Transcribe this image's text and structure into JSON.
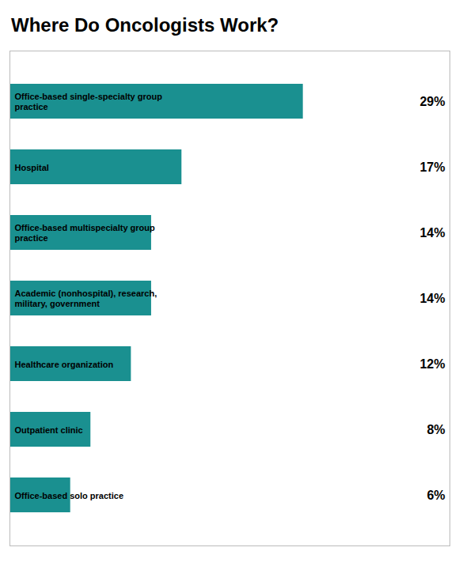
{
  "chart_data": {
    "type": "bar",
    "orientation": "horizontal",
    "title": "Where Do Oncologists Work?",
    "categories": [
      "Office-based single-specialty group\npractice",
      "Hospital",
      "Office-based multispecialty group\npractice",
      "Academic (nonhospital), research,\nmilitary, government",
      "Healthcare organization",
      "Outpatient clinic",
      "Office-based solo practice"
    ],
    "values": [
      29,
      17,
      14,
      14,
      12,
      8,
      6
    ],
    "value_labels": [
      "29%",
      "17%",
      "14%",
      "14%",
      "12%",
      "8%",
      "6%"
    ],
    "data_labels": true,
    "color": "#1a9090",
    "xlim": [
      0,
      43.5
    ],
    "tick_labels": false,
    "grid": false
  }
}
